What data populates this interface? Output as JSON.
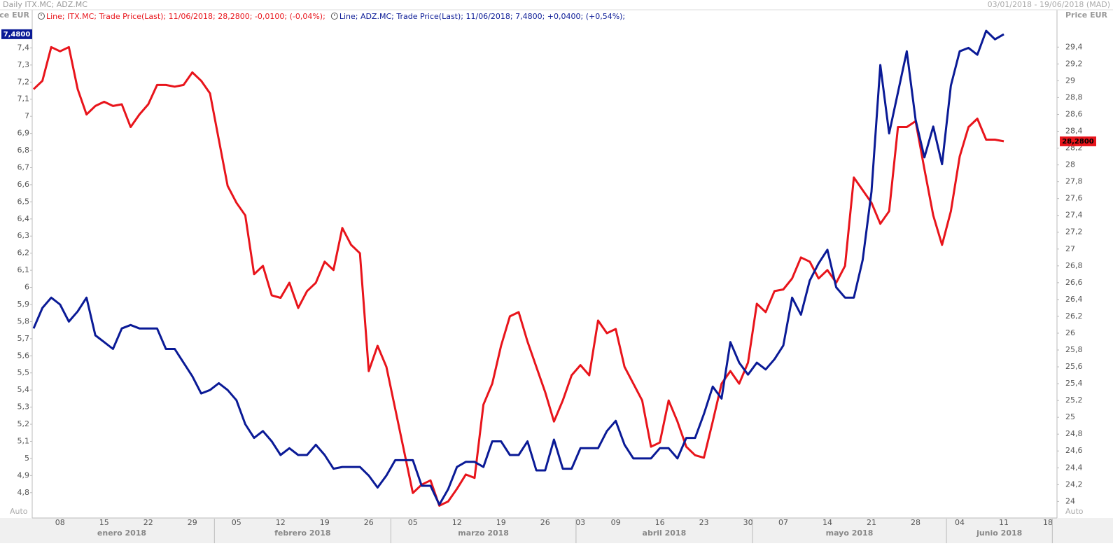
{
  "chart_data": {
    "type": "line",
    "title": "Daily ITX.MC; ADZ.MC",
    "subtitle": "03/01/2018 - 19/06/2018 (MAD)",
    "y_label": "Price EUR",
    "y2_label": "Price EUR",
    "scale_labels": [
      "Auto",
      "Auto"
    ],
    "months": [
      "enero 2018",
      "febrero 2018",
      "marzo 2018",
      "abril 2018",
      "mayo 2018",
      "junio 2018"
    ],
    "categories": [
      null,
      null,
      null,
      "08",
      null,
      null,
      null,
      null,
      "15",
      null,
      null,
      null,
      null,
      "22",
      null,
      null,
      null,
      null,
      "29",
      null,
      null,
      null,
      null,
      "05",
      null,
      null,
      null,
      null,
      "12",
      null,
      null,
      null,
      null,
      "19",
      null,
      null,
      null,
      null,
      "26",
      null,
      null,
      null,
      null,
      "05",
      null,
      null,
      null,
      null,
      "12",
      null,
      null,
      null,
      null,
      "19",
      null,
      null,
      null,
      null,
      "26",
      null,
      null,
      null,
      "03",
      null,
      null,
      null,
      "09",
      null,
      null,
      null,
      null,
      "16",
      null,
      null,
      null,
      null,
      "23",
      null,
      null,
      null,
      null,
      "30",
      null,
      null,
      null,
      "07",
      null,
      null,
      null,
      null,
      "14",
      null,
      null,
      null,
      null,
      "21",
      null,
      null,
      null,
      null,
      "28",
      null,
      null,
      null,
      null,
      "04",
      null,
      null,
      null,
      null,
      "11",
      null,
      null,
      null,
      null,
      "18"
    ],
    "series": [
      {
        "name": "Line; ITX.MC; Trade Price(Last); 11/06/2018; 28,2800; -0,0100; (-0,04%);",
        "color": "#e8141b",
        "axis": "y2",
        "last_label": "28,2800",
        "values": [
          28.9,
          29.0,
          29.4,
          29.35,
          29.4,
          28.9,
          28.6,
          28.7,
          28.75,
          28.7,
          28.72,
          28.45,
          28.6,
          28.72,
          28.95,
          28.95,
          28.93,
          28.95,
          29.1,
          29.0,
          28.85,
          28.3,
          27.75,
          27.55,
          27.4,
          26.7,
          26.8,
          26.45,
          26.42,
          26.6,
          26.3,
          26.5,
          26.6,
          26.85,
          26.75,
          27.25,
          27.05,
          26.95,
          25.55,
          25.85,
          25.6,
          25.1,
          24.6,
          24.1,
          24.2,
          24.25,
          23.95,
          24.0,
          24.15,
          24.32,
          24.28,
          25.15,
          25.4,
          25.85,
          26.2,
          26.25,
          25.9,
          25.6,
          25.3,
          24.95,
          25.2,
          25.5,
          25.62,
          25.5,
          26.15,
          26.0,
          26.05,
          25.6,
          25.4,
          25.2,
          24.65,
          24.7,
          25.2,
          24.95,
          24.65,
          24.55,
          24.52,
          24.95,
          25.4,
          25.55,
          25.4,
          25.65,
          26.35,
          26.25,
          26.5,
          26.52,
          26.65,
          26.9,
          26.85,
          26.65,
          26.75,
          26.6,
          26.8,
          27.85,
          27.7,
          27.55,
          27.3,
          27.45,
          28.45,
          28.45,
          28.52,
          27.95,
          27.4,
          27.05,
          27.45,
          28.1,
          28.45,
          28.55,
          28.3,
          28.3,
          28.28,
          null,
          null,
          null,
          null,
          null
        ]
      },
      {
        "name": "Line; ADZ.MC; Trade Price(Last); 11/06/2018; 7,4800; +0,0400; (+0,54%);",
        "color": "#0a1a96",
        "axis": "y",
        "last_label": "7,4800",
        "values": [
          5.76,
          5.88,
          5.94,
          5.9,
          5.8,
          5.86,
          5.94,
          5.72,
          5.68,
          5.64,
          5.76,
          5.78,
          5.76,
          5.76,
          5.76,
          5.64,
          5.64,
          5.56,
          5.48,
          5.38,
          5.4,
          5.44,
          5.4,
          5.34,
          5.2,
          5.12,
          5.16,
          5.1,
          5.02,
          5.06,
          5.02,
          5.02,
          5.08,
          5.02,
          4.94,
          4.95,
          4.95,
          4.95,
          4.9,
          4.83,
          4.9,
          4.99,
          4.99,
          4.99,
          4.84,
          4.84,
          4.73,
          4.82,
          4.95,
          4.98,
          4.98,
          4.95,
          5.1,
          5.1,
          5.02,
          5.02,
          5.1,
          4.93,
          4.93,
          5.11,
          4.94,
          4.94,
          5.06,
          5.06,
          5.06,
          5.16,
          5.22,
          5.08,
          5.0,
          5.0,
          5.0,
          5.06,
          5.06,
          5.0,
          5.12,
          5.12,
          5.26,
          5.42,
          5.35,
          5.68,
          5.56,
          5.49,
          5.56,
          5.52,
          5.58,
          5.66,
          5.94,
          5.84,
          6.04,
          6.14,
          6.22,
          6.0,
          5.94,
          5.94,
          6.16,
          6.56,
          7.3,
          6.9,
          7.14,
          7.38,
          6.98,
          6.76,
          6.94,
          6.72,
          7.18,
          7.38,
          7.4,
          7.36,
          7.5,
          7.45,
          7.48,
          null,
          null,
          null,
          null,
          null
        ]
      }
    ],
    "ylim": [
      4.66,
      7.68
    ],
    "yticks": [
      {
        "value": 4.8,
        "label": "4,8"
      },
      {
        "value": 4.9,
        "label": "4,9"
      },
      5,
      {
        "value": 5.1,
        "label": "5,1"
      },
      {
        "value": 5.2,
        "label": "5,2"
      },
      {
        "value": 5.3,
        "label": "5,3"
      },
      {
        "value": 5.4,
        "label": "5,4"
      },
      {
        "value": 5.5,
        "label": "5,5"
      },
      {
        "value": 5.6,
        "label": "5,6"
      },
      {
        "value": 5.7,
        "label": "5,7"
      },
      {
        "value": 5.8,
        "label": "5,8"
      },
      {
        "value": 5.9,
        "label": "5,9"
      },
      6,
      {
        "value": 6.1,
        "label": "6,1"
      },
      {
        "value": 6.2,
        "label": "6,2"
      },
      {
        "value": 6.3,
        "label": "6,3"
      },
      {
        "value": 6.4,
        "label": "6,4"
      },
      {
        "value": 6.5,
        "label": "6,5"
      },
      {
        "value": 6.6,
        "label": "6,6"
      },
      {
        "value": 6.7,
        "label": "6,7"
      },
      {
        "value": 6.8,
        "label": "6,8"
      },
      {
        "value": 6.9,
        "label": "6,9"
      },
      7,
      {
        "value": 7.1,
        "label": "7,1"
      },
      {
        "value": 7.2,
        "label": "7,2"
      },
      {
        "value": 7.3,
        "label": "7,3"
      },
      {
        "value": 7.4,
        "label": "7,4"
      }
    ],
    "y2lim": [
      23.82,
      29.96
    ],
    "y2ticks": [
      24,
      {
        "value": 24.2,
        "label": "24,2"
      },
      {
        "value": 24.4,
        "label": "24,4"
      },
      {
        "value": 24.6,
        "label": "24,6"
      },
      {
        "value": 24.8,
        "label": "24,8"
      },
      25,
      {
        "value": 25.2,
        "label": "25,2"
      },
      {
        "value": 25.4,
        "label": "25,4"
      },
      {
        "value": 25.6,
        "label": "25,6"
      },
      {
        "value": 25.8,
        "label": "25,8"
      },
      26,
      {
        "value": 26.2,
        "label": "26,2"
      },
      {
        "value": 26.4,
        "label": "26,4"
      },
      {
        "value": 26.6,
        "label": "26,6"
      },
      {
        "value": 26.8,
        "label": "26,8"
      },
      27,
      {
        "value": 27.2,
        "label": "27,2"
      },
      {
        "value": 27.4,
        "label": "27,4"
      },
      {
        "value": 27.6,
        "label": "27,6"
      },
      {
        "value": 27.8,
        "label": "27,8"
      },
      28,
      {
        "value": 28.2,
        "label": "28,2"
      },
      {
        "value": 28.4,
        "label": "28,4"
      },
      {
        "value": 28.6,
        "label": "28,6"
      },
      {
        "value": 28.8,
        "label": "28,8"
      },
      29,
      {
        "value": 29.2,
        "label": "29,2"
      },
      {
        "value": 29.4,
        "label": "29,4"
      }
    ],
    "grid": false
  }
}
